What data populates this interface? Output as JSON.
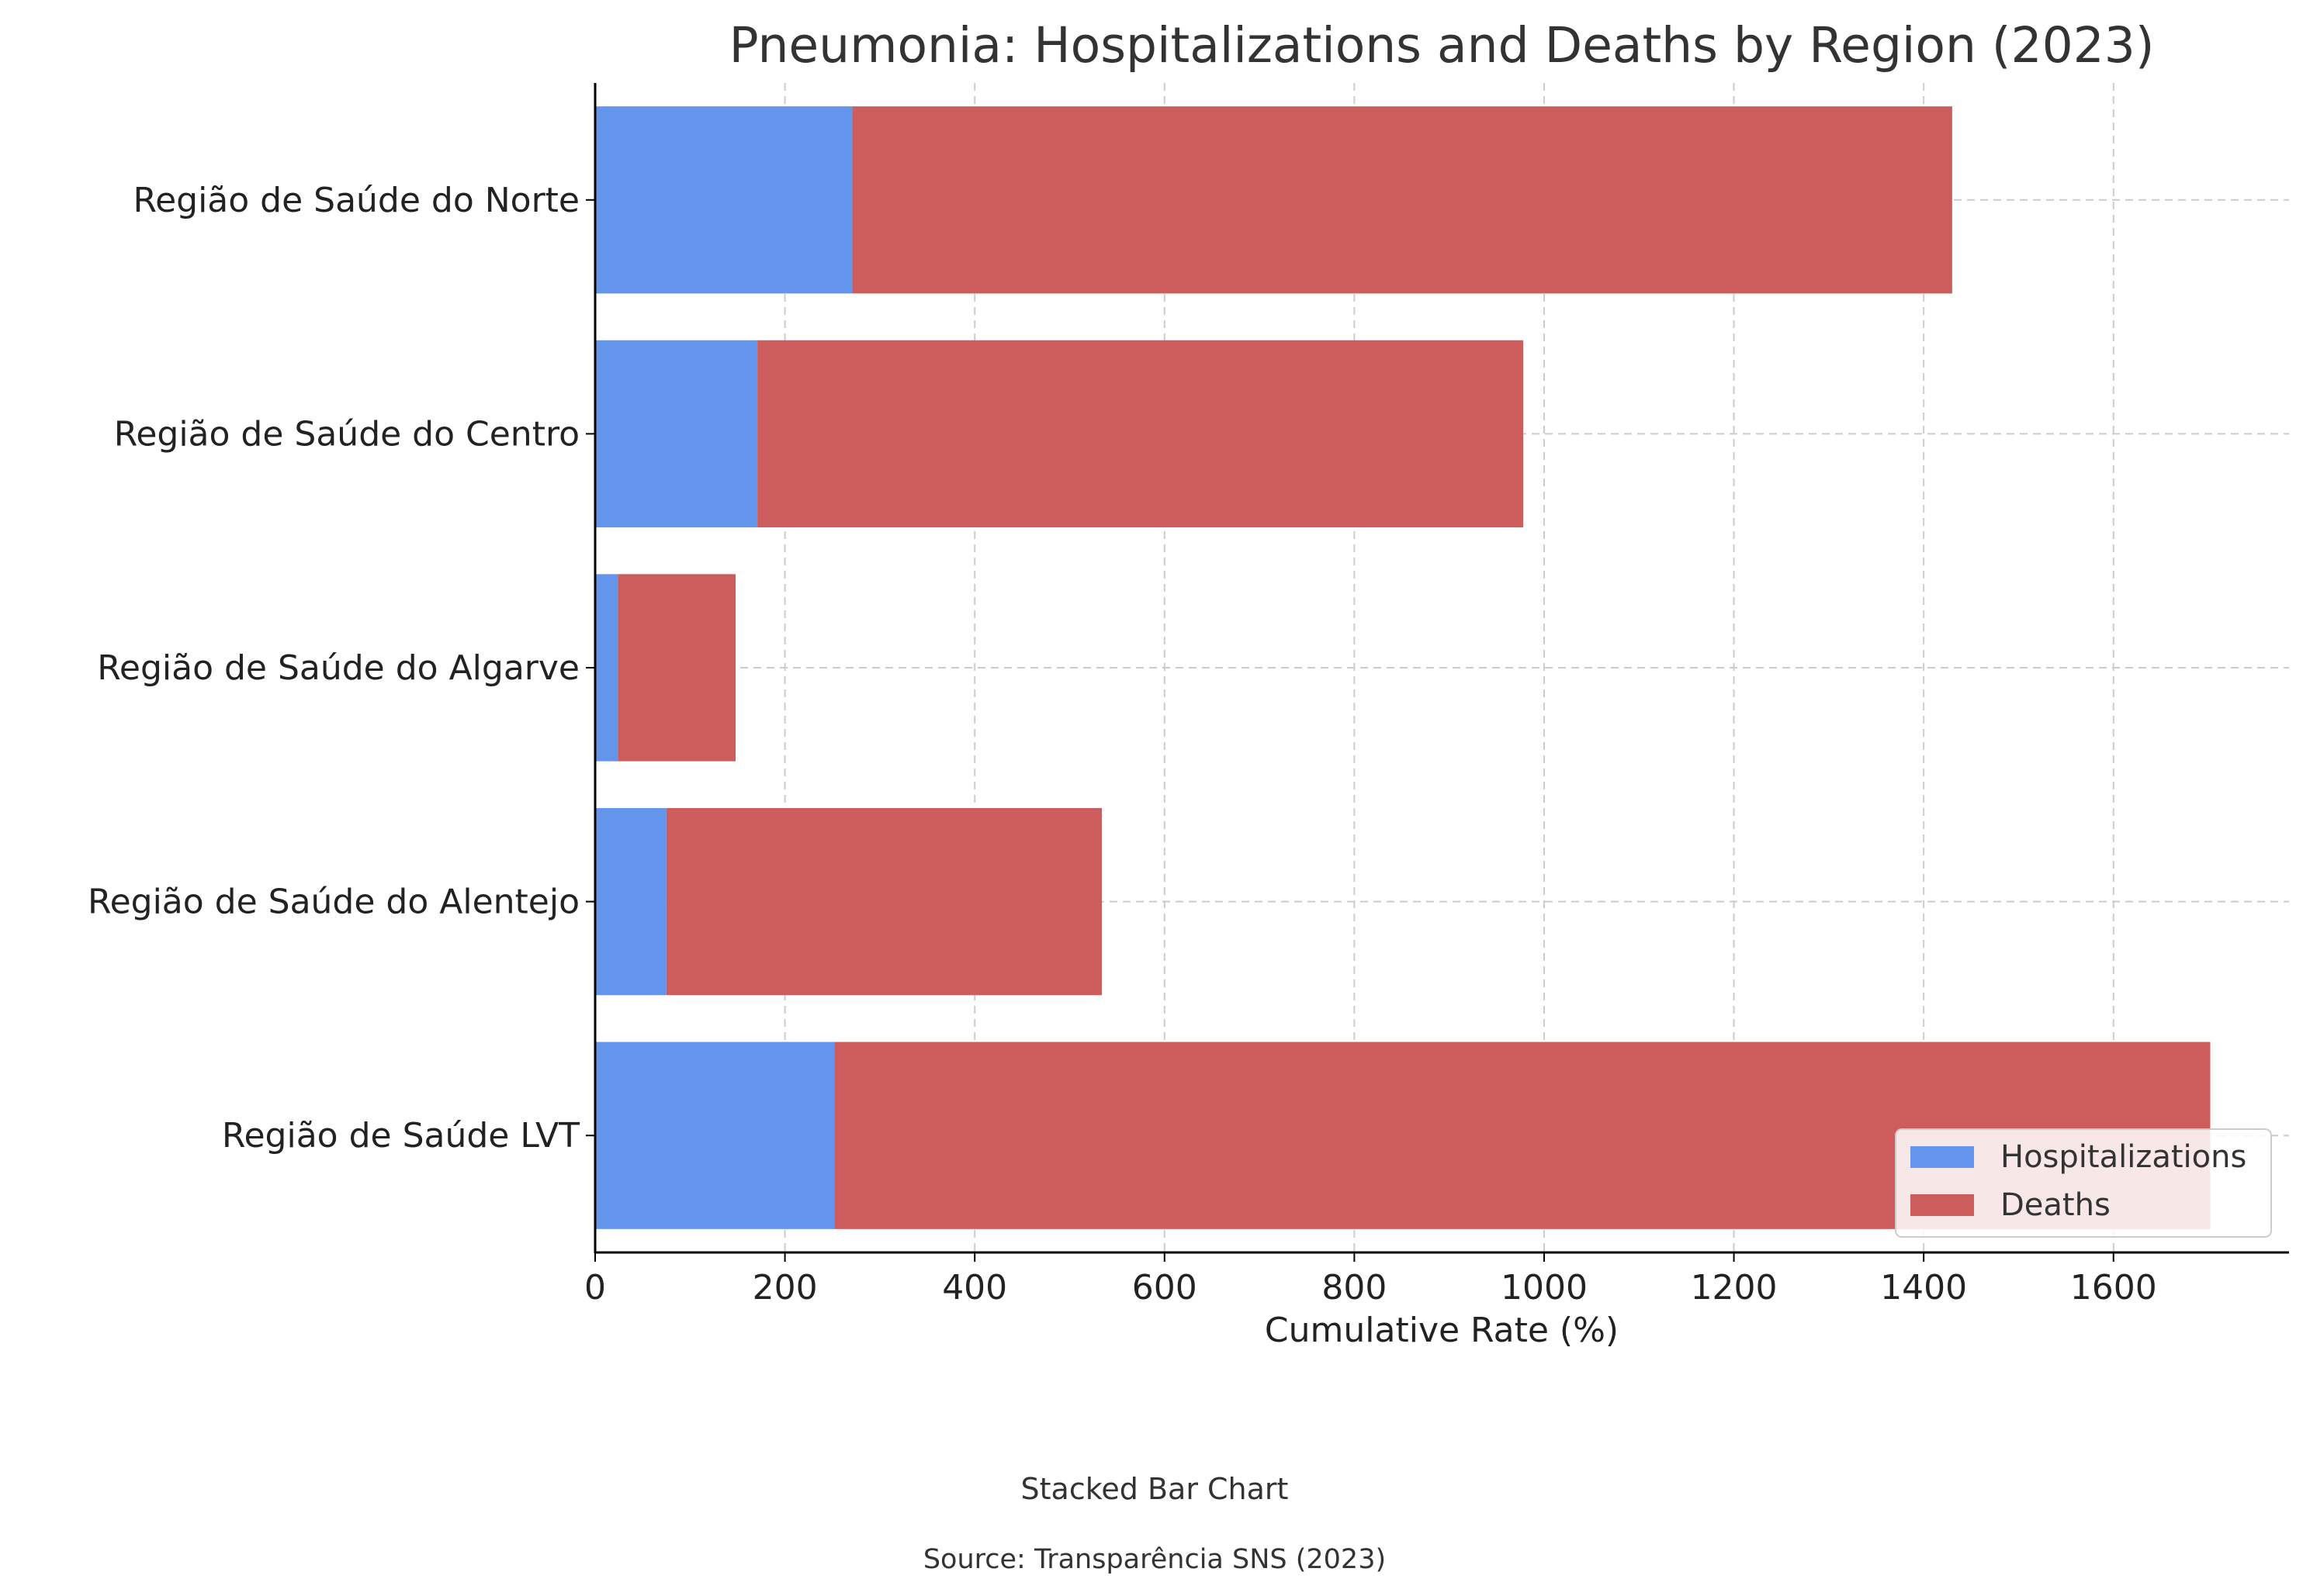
{
  "chart_data": {
    "type": "bar",
    "orientation": "horizontal",
    "stacked": true,
    "title": "Pneumonia: Hospitalizations and Deaths by Region (2023)",
    "xlabel": "Cumulative Rate (%)",
    "ylabel": "",
    "xlim": [
      0,
      1785
    ],
    "xticks": [
      0,
      200,
      400,
      600,
      800,
      1000,
      1200,
      1400,
      1600
    ],
    "grid": true,
    "legend_position": "bottom-right",
    "categories": [
      "Região de Saúde do Norte",
      "Região de Saúde do Centro",
      "Região de Saúde do Algarve",
      "Região de Saúde do Alentejo",
      "Região de Saúde LVT"
    ],
    "series": [
      {
        "name": "Hospitalizations",
        "color": "#6495ED",
        "values": [
          271,
          171,
          24,
          75,
          252
        ]
      },
      {
        "name": "Deaths",
        "color": "#CD5C5C",
        "values": [
          1159,
          807,
          124,
          459,
          1450
        ]
      }
    ]
  },
  "caption": "Stacked Bar Chart",
  "source": "Source: Transparência SNS (2023)"
}
